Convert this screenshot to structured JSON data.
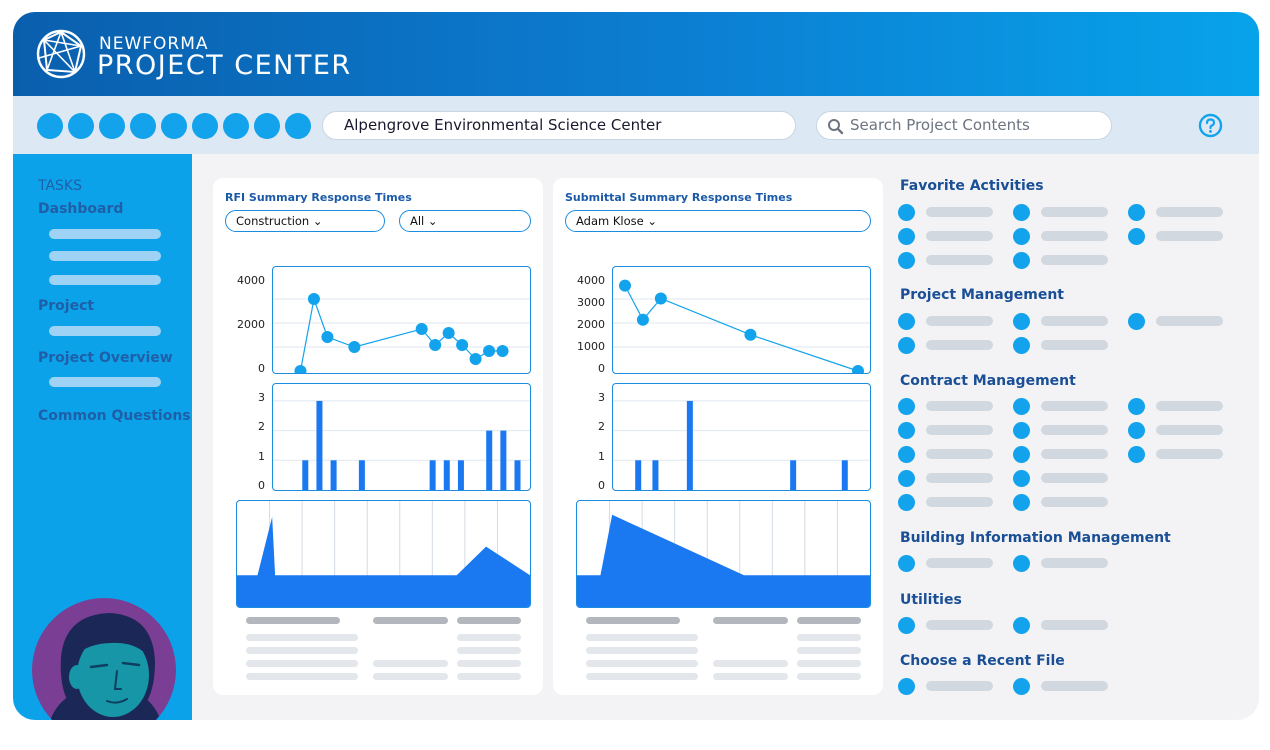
{
  "header": {
    "brand_top": "NEWFORMA",
    "brand_bottom": "PROJECT CENTER",
    "logo_icon": "newforma-sphere-logo"
  },
  "toolbar": {
    "project_name": "Alpengrove Environmental Science Center",
    "search_placeholder": "Search Project Contents",
    "help_icon": "help-icon"
  },
  "sidebar": {
    "tasks_label": "TASKS",
    "items": [
      "Dashboard",
      "Project",
      "Project Overview",
      "Common Questions"
    ]
  },
  "rfi_panel": {
    "title": "RFI Summary Response Times",
    "filter_1": "Construction",
    "filter_2": "All"
  },
  "submittal_panel": {
    "title": "Submittal Summary Response Times",
    "filter_1": "Adam Klose"
  },
  "activity_sections": [
    "Favorite Activities",
    "Project Management",
    "Contract Management",
    "Building Information Management",
    "Utilities",
    "Choose a Recent File"
  ],
  "colors": {
    "accent": "#12a3ec",
    "header_dark": "#0a5fad",
    "header_light": "#07a3ea",
    "chart_blue": "#1a78f0",
    "title_blue": "#1a4f96"
  },
  "chart_data": [
    {
      "type": "line",
      "panel": "RFI Summary Response Times",
      "ylim": [
        0,
        4800
      ],
      "yticks": [
        "4000",
        "2000",
        "0"
      ],
      "x": [
        1,
        2,
        3,
        5,
        10,
        11,
        12,
        13,
        14,
        15,
        16
      ],
      "values": [
        0,
        3600,
        1700,
        1200,
        2100,
        1300,
        1900,
        1300,
        600,
        1000,
        1000
      ]
    },
    {
      "type": "bar",
      "panel": "RFI Summary Response Times",
      "ylim": [
        0,
        3.3
      ],
      "yticks": [
        "3",
        "2",
        "1",
        "0"
      ],
      "x": [
        1,
        2,
        3,
        4,
        5,
        6,
        7,
        8,
        9,
        10,
        11,
        12,
        13,
        14,
        15,
        16,
        17
      ],
      "values": [
        0,
        1,
        3,
        1,
        0,
        1,
        0,
        0,
        0,
        0,
        1,
        1,
        1,
        0,
        2,
        2,
        1
      ]
    },
    {
      "type": "area",
      "panel": "RFI Summary Response Times",
      "ylim": [
        0,
        100
      ],
      "x": [
        0,
        7,
        12,
        13,
        75,
        85,
        100
      ],
      "values": [
        30,
        30,
        85,
        30,
        30,
        57,
        30
      ]
    },
    {
      "type": "line",
      "panel": "Submittal Summary Response Times",
      "ylim": [
        0,
        4500
      ],
      "yticks": [
        "4000",
        "3000",
        "2000",
        "1000",
        "0"
      ],
      "x": [
        0,
        1,
        2,
        7,
        13
      ],
      "values": [
        4000,
        2400,
        3400,
        1700,
        0
      ]
    },
    {
      "type": "bar",
      "panel": "Submittal Summary Response Times",
      "ylim": [
        0,
        3.3
      ],
      "yticks": [
        "3",
        "2",
        "1",
        "0"
      ],
      "x": [
        1,
        2,
        3,
        4,
        5,
        6,
        7,
        8,
        9,
        10,
        11,
        12,
        13
      ],
      "values": [
        1,
        1,
        0,
        3,
        0,
        0,
        0,
        0,
        0,
        1,
        0,
        0,
        1
      ]
    },
    {
      "type": "area",
      "panel": "Submittal Summary Response Times",
      "ylim": [
        0,
        100
      ],
      "x": [
        0,
        8,
        12,
        57,
        100
      ],
      "values": [
        30,
        30,
        87,
        30,
        30
      ]
    }
  ]
}
